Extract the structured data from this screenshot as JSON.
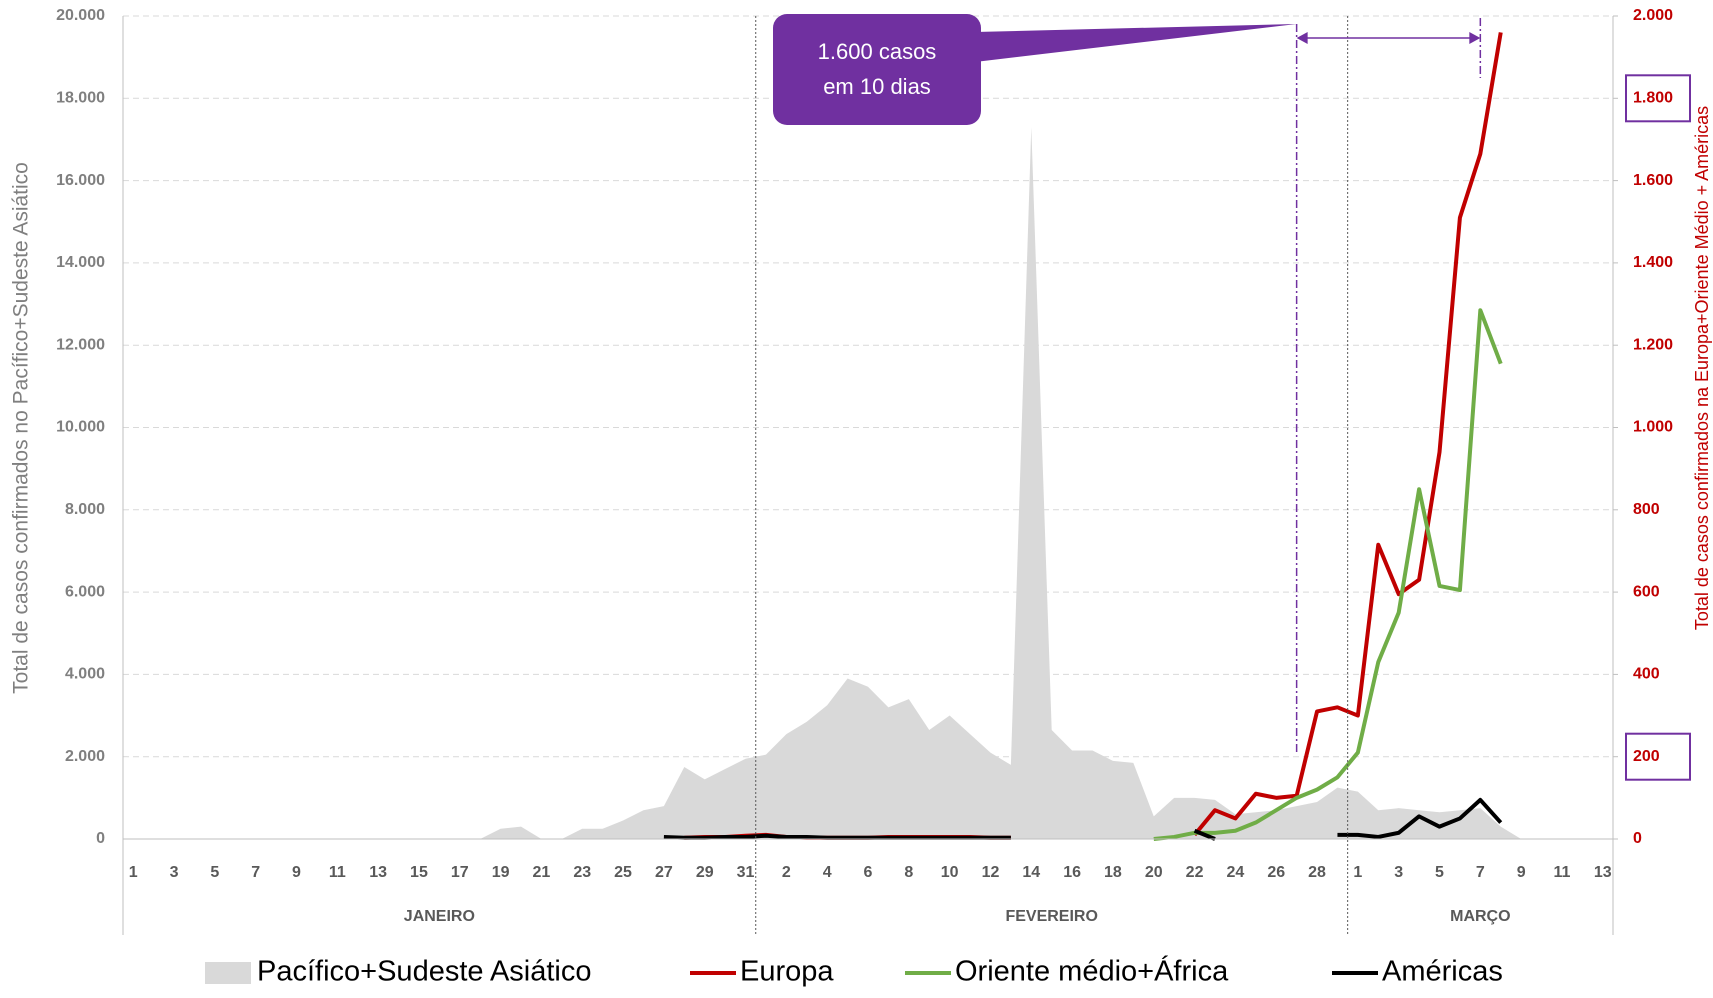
{
  "chart_data": {
    "type": "combo",
    "ylabel": "Total de casos confirmados no Pacífico+Sudeste Asiático",
    "y2label": "Total de casos confirmados na Europa+Oriente Médio + Américas",
    "annotation": [
      "1.600 casos",
      "em 10 dias"
    ],
    "months": [
      "JANEIRO",
      "FEVEREIRO",
      "MARÇO"
    ],
    "categories": [
      "1",
      null,
      "3",
      null,
      "5",
      null,
      "7",
      null,
      "9",
      null,
      "11",
      null,
      "13",
      null,
      "15",
      null,
      "17",
      null,
      "19",
      null,
      "21",
      null,
      "23",
      null,
      "25",
      null,
      "27",
      null,
      "29",
      null,
      "31",
      null,
      "2",
      null,
      "4",
      null,
      "6",
      null,
      "8",
      null,
      "10",
      null,
      "12",
      null,
      "14",
      null,
      "16",
      null,
      "18",
      null,
      "20",
      null,
      "22",
      null,
      "24",
      null,
      "26",
      null,
      "28",
      null,
      "1",
      null,
      "3",
      null,
      "5",
      null,
      "7",
      null,
      "9",
      null,
      "11",
      null,
      "13"
    ],
    "ylim": [
      0,
      20000
    ],
    "yticks": [
      0,
      {
        "value": 2000,
        "label": "2.000"
      },
      {
        "value": 4000,
        "label": "4.000"
      },
      {
        "value": 6000,
        "label": "6.000"
      },
      {
        "value": 8000,
        "label": "8.000"
      },
      {
        "value": 10000,
        "label": "10.000"
      },
      {
        "value": 12000,
        "label": "12.000"
      },
      {
        "value": 14000,
        "label": "14.000"
      },
      {
        "value": 16000,
        "label": "16.000"
      },
      {
        "value": 18000,
        "label": "18.000"
      },
      {
        "value": 20000,
        "label": "20.000"
      }
    ],
    "y2lim": [
      0,
      2000
    ],
    "y2ticks": [
      0,
      200,
      400,
      600,
      800,
      {
        "value": 1000,
        "label": "1.000"
      },
      {
        "value": 1200,
        "label": "1.200"
      },
      {
        "value": 1400,
        "label": "1.400"
      },
      {
        "value": 1600,
        "label": "1.600"
      },
      {
        "value": 1800,
        "label": "1.800"
      },
      {
        "value": 2000,
        "label": "2.000"
      }
    ],
    "grid": true,
    "series": [
      {
        "name": "Pacífico+Sudeste Asiático",
        "type": "area",
        "color": "#d9d9d9",
        "values": [
          0,
          0,
          0,
          0,
          0,
          0,
          0,
          0,
          0,
          0,
          0,
          0,
          0,
          0,
          0,
          0,
          0,
          0,
          250,
          300,
          0,
          0,
          250,
          250,
          450,
          700,
          800,
          1750,
          1450,
          1700,
          1950,
          2050,
          2550,
          2850,
          3250,
          3900,
          3700,
          3200,
          3400,
          2650,
          3000,
          2550,
          2100,
          1800,
          17300,
          2650,
          2150,
          2150,
          1900,
          1850,
          550,
          1000,
          1000,
          950,
          600,
          650,
          700,
          800,
          900,
          1250,
          1150,
          700,
          750,
          700,
          650,
          700,
          750,
          300,
          0,
          null,
          null,
          null,
          null
        ]
      },
      {
        "name": "Europa",
        "type": "line",
        "axis": "y2",
        "color": "#c00000",
        "values": [
          null,
          null,
          null,
          null,
          null,
          null,
          null,
          null,
          null,
          null,
          null,
          null,
          null,
          null,
          null,
          null,
          null,
          null,
          null,
          null,
          null,
          null,
          null,
          null,
          null,
          null,
          null,
          3,
          5,
          5,
          8,
          10,
          5,
          3,
          3,
          3,
          3,
          5,
          5,
          5,
          5,
          5,
          3,
          3,
          null,
          null,
          null,
          null,
          null,
          null,
          null,
          null,
          10,
          70,
          50,
          110,
          100,
          105,
          310,
          320,
          300,
          715,
          595,
          630,
          940,
          1510,
          1665,
          1960,
          null,
          null,
          null,
          null,
          null
        ]
      },
      {
        "name": "Oriente médio+África",
        "type": "line",
        "axis": "y2",
        "color": "#70ad47",
        "values": [
          null,
          null,
          null,
          null,
          null,
          null,
          null,
          null,
          null,
          null,
          null,
          null,
          null,
          null,
          null,
          null,
          null,
          null,
          null,
          null,
          null,
          null,
          null,
          null,
          null,
          null,
          null,
          null,
          null,
          null,
          null,
          null,
          null,
          null,
          null,
          null,
          null,
          null,
          null,
          null,
          null,
          null,
          null,
          null,
          null,
          null,
          null,
          null,
          null,
          null,
          0,
          5,
          15,
          15,
          20,
          40,
          70,
          100,
          120,
          150,
          210,
          430,
          550,
          850,
          615,
          605,
          1285,
          1155,
          null,
          null,
          null,
          null,
          null
        ]
      },
      {
        "name": "Américas",
        "type": "line",
        "axis": "y2",
        "color": "#000000",
        "values": [
          null,
          null,
          null,
          null,
          null,
          null,
          null,
          null,
          null,
          null,
          null,
          null,
          null,
          null,
          null,
          null,
          null,
          null,
          null,
          null,
          null,
          null,
          null,
          null,
          null,
          null,
          5,
          3,
          3,
          5,
          5,
          8,
          5,
          5,
          3,
          3,
          3,
          3,
          3,
          3,
          3,
          3,
          3,
          3,
          null,
          null,
          null,
          null,
          null,
          null,
          null,
          null,
          20,
          0,
          null,
          null,
          null,
          null,
          null,
          10,
          10,
          5,
          15,
          55,
          30,
          50,
          95,
          40,
          null,
          null,
          null,
          null,
          null
        ]
      }
    ]
  }
}
